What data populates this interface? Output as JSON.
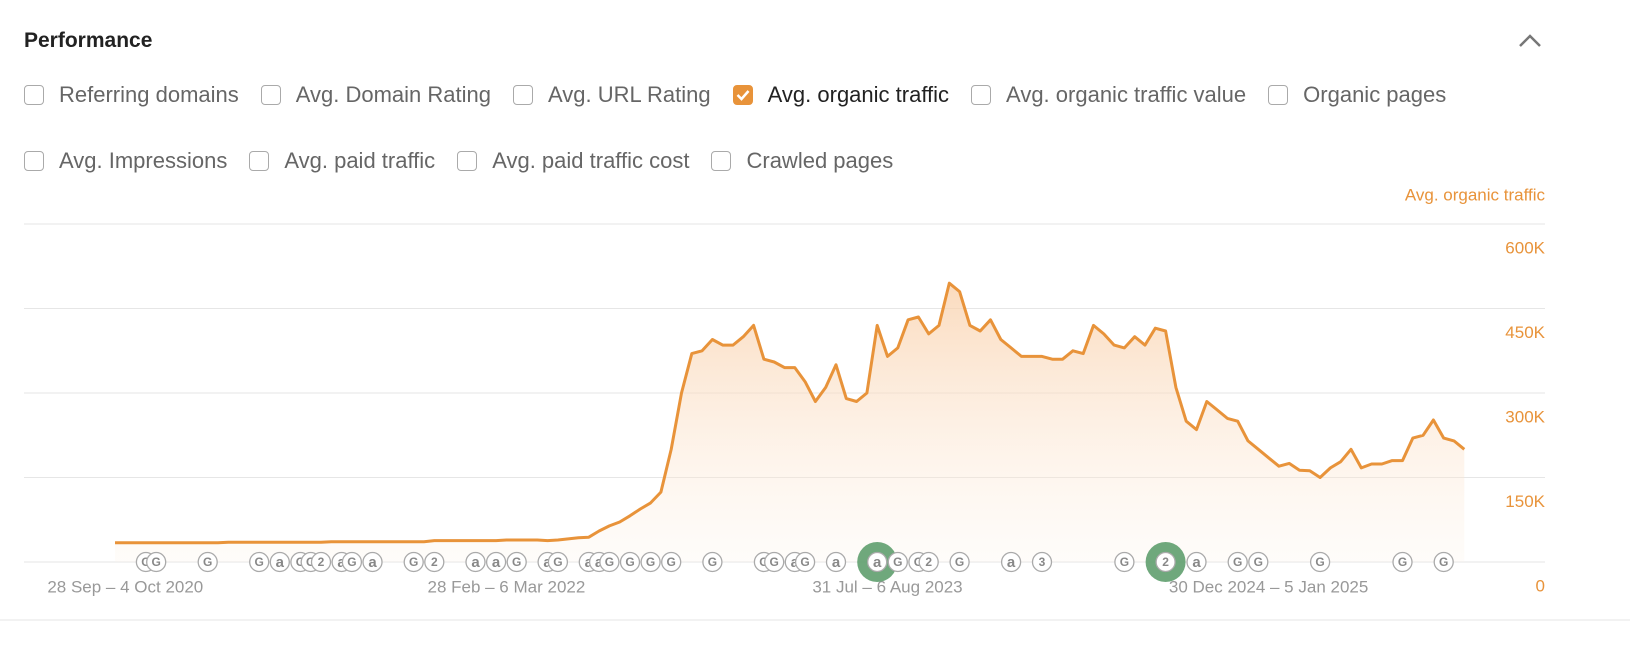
{
  "header": {
    "title": "Performance"
  },
  "metrics": [
    {
      "label": "Referring domains",
      "checked": false
    },
    {
      "label": "Avg. Domain Rating",
      "checked": false
    },
    {
      "label": "Avg. URL Rating",
      "checked": false
    },
    {
      "label": "Avg. organic traffic",
      "checked": true
    },
    {
      "label": "Avg. organic traffic value",
      "checked": false
    },
    {
      "label": "Organic pages",
      "checked": false
    },
    {
      "label": "Avg. Impressions",
      "checked": false
    },
    {
      "label": "Avg. paid traffic",
      "checked": false
    },
    {
      "label": "Avg. paid traffic cost",
      "checked": false
    },
    {
      "label": "Crawled pages",
      "checked": false
    }
  ],
  "chart_data": {
    "type": "area",
    "categories": [
      null,
      "28 Sep – 4 Oct 2020",
      null,
      null,
      null,
      null,
      null,
      null,
      null,
      null,
      null,
      null,
      null,
      null,
      null,
      null,
      null,
      null,
      null,
      null,
      null,
      null,
      null,
      null,
      null,
      null,
      null,
      null,
      null,
      null,
      null,
      null,
      null,
      null,
      null,
      null,
      null,
      null,
      "28 Feb – 6 Mar 2022",
      null,
      null,
      null,
      null,
      null,
      null,
      null,
      null,
      null,
      null,
      null,
      null,
      null,
      null,
      null,
      null,
      null,
      null,
      null,
      null,
      null,
      null,
      null,
      null,
      null,
      null,
      null,
      null,
      null,
      null,
      null,
      null,
      null,
      null,
      null,
      null,
      "31 Jul – 6 Aug 2023",
      null,
      null,
      null,
      null,
      null,
      null,
      null,
      null,
      null,
      null,
      null,
      null,
      null,
      null,
      null,
      null,
      null,
      null,
      null,
      null,
      null,
      null,
      null,
      null,
      null,
      null,
      null,
      null,
      null,
      null,
      null,
      null,
      null,
      null,
      null,
      null,
      "30 Dec 2024 – 5 Jan 2025",
      null,
      null,
      null,
      null,
      null,
      null,
      null,
      null,
      null,
      null,
      null,
      null,
      null,
      null,
      null,
      null,
      null,
      null,
      null
    ],
    "series": [
      {
        "name": "Avg. organic traffic",
        "color": "#e8933a",
        "values": [
          34000,
          34000,
          34000,
          34000,
          34000,
          34000,
          34000,
          34000,
          34000,
          34000,
          34000,
          35000,
          35000,
          35000,
          35000,
          35000,
          35000,
          35000,
          35000,
          35000,
          35000,
          36000,
          36000,
          36000,
          36000,
          36000,
          36000,
          36000,
          36000,
          36000,
          36000,
          38000,
          38000,
          38000,
          38000,
          38000,
          38000,
          38000,
          39000,
          39000,
          39000,
          39000,
          38000,
          39000,
          41000,
          43000,
          44000,
          55000,
          64000,
          71000,
          82000,
          94000,
          105000,
          124000,
          200000,
          300000,
          370000,
          375000,
          395000,
          385000,
          385000,
          400000,
          420000,
          360000,
          355000,
          345000,
          345000,
          320000,
          285000,
          310000,
          350000,
          290000,
          285000,
          300000,
          420000,
          365000,
          380000,
          430000,
          435000,
          405000,
          420000,
          495000,
          480000,
          420000,
          410000,
          430000,
          395000,
          380000,
          365000,
          365000,
          365000,
          360000,
          360000,
          375000,
          370000,
          420000,
          405000,
          385000,
          380000,
          400000,
          385000,
          415000,
          410000,
          310000,
          250000,
          235000,
          285000,
          270000,
          255000,
          250000,
          215000,
          200000,
          185000,
          170000,
          175000,
          163000,
          162000,
          150000,
          167000,
          178000,
          200000,
          167000,
          174000,
          174000,
          180000,
          180000,
          220000,
          225000,
          252000,
          220000,
          215000,
          200000
        ]
      }
    ],
    "ylim": [
      0,
      600000
    ],
    "yticks": [
      0,
      {
        "value": 150000,
        "label": "150K"
      },
      {
        "value": 300000,
        "label": "300K"
      },
      {
        "value": 450000,
        "label": "450K"
      },
      {
        "value": 600000,
        "label": "600K"
      }
    ],
    "grid": true,
    "annotations": [
      {
        "label": "G",
        "at": 3
      },
      {
        "label": "G",
        "at": 4
      },
      {
        "label": "G",
        "at": 9
      },
      {
        "label": "G",
        "at": 14
      },
      {
        "label": "a",
        "at": 16
      },
      {
        "label": "G",
        "at": 18
      },
      {
        "label": "G",
        "at": 19
      },
      {
        "label": "2",
        "at": 20
      },
      {
        "label": "a",
        "at": 22
      },
      {
        "label": "G",
        "at": 23
      },
      {
        "label": "a",
        "at": 25
      },
      {
        "label": "G",
        "at": 29
      },
      {
        "label": "2",
        "at": 31
      },
      {
        "label": "a",
        "at": 35
      },
      {
        "label": "a",
        "at": 37
      },
      {
        "label": "G",
        "at": 39
      },
      {
        "label": "a",
        "at": 42
      },
      {
        "label": "G",
        "at": 43
      },
      {
        "label": "a",
        "at": 46
      },
      {
        "label": "a",
        "at": 47
      },
      {
        "label": "G",
        "at": 48
      },
      {
        "label": "G",
        "at": 50
      },
      {
        "label": "G",
        "at": 52
      },
      {
        "label": "G",
        "at": 54
      },
      {
        "label": "G",
        "at": 58
      },
      {
        "label": "G",
        "at": 63
      },
      {
        "label": "G",
        "at": 64
      },
      {
        "label": "a",
        "at": 66
      },
      {
        "label": "G",
        "at": 67
      },
      {
        "label": "a",
        "at": 70
      },
      {
        "label": "a",
        "at": 74,
        "highlight": true
      },
      {
        "label": "G",
        "at": 76
      },
      {
        "label": "G",
        "at": 78
      },
      {
        "label": "2",
        "at": 79
      },
      {
        "label": "G",
        "at": 82
      },
      {
        "label": "a",
        "at": 87
      },
      {
        "label": "3",
        "at": 90
      },
      {
        "label": "G",
        "at": 98
      },
      {
        "label": "2",
        "at": 102,
        "highlight": true
      },
      {
        "label": "a",
        "at": 105
      },
      {
        "label": "G",
        "at": 109
      },
      {
        "label": "G",
        "at": 111
      },
      {
        "label": "G",
        "at": 117
      },
      {
        "label": "G",
        "at": 125
      },
      {
        "label": "G",
        "at": 129
      }
    ]
  }
}
